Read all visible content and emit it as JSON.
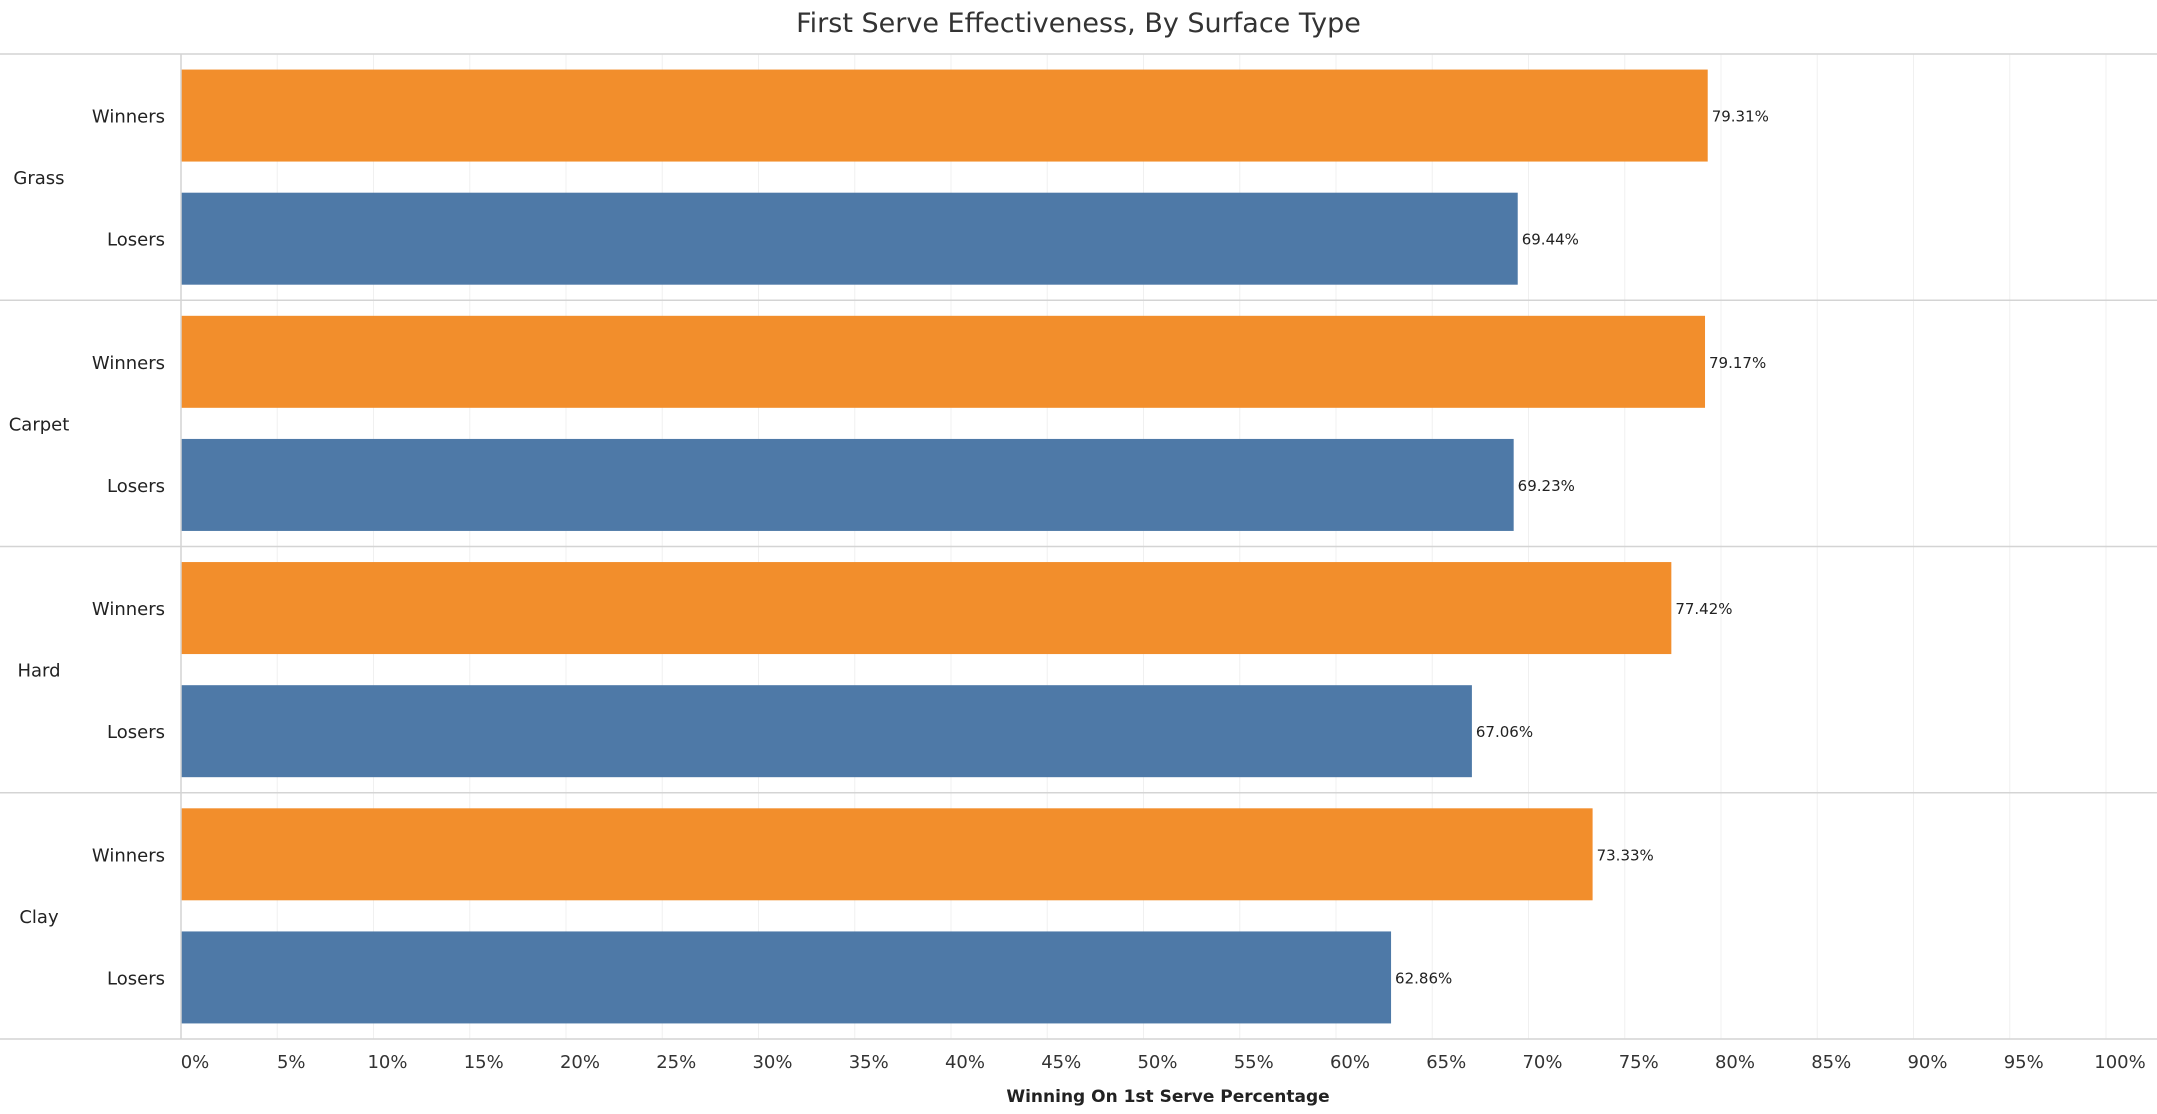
{
  "chart_data": {
    "type": "bar",
    "orientation": "horizontal",
    "title": "First Serve Effectiveness, By Surface Type",
    "xlabel": "Winning On 1st Serve Percentage",
    "ylabel": "",
    "xlim": [
      0,
      100
    ],
    "x_ticks": [
      {
        "value": 0,
        "label": "0%"
      },
      {
        "value": 5,
        "label": "5%"
      },
      {
        "value": 10,
        "label": "10%"
      },
      {
        "value": 15,
        "label": "15%"
      },
      {
        "value": 20,
        "label": "20%"
      },
      {
        "value": 25,
        "label": "25%"
      },
      {
        "value": 30,
        "label": "30%"
      },
      {
        "value": 35,
        "label": "35%"
      },
      {
        "value": 40,
        "label": "40%"
      },
      {
        "value": 45,
        "label": "45%"
      },
      {
        "value": 50,
        "label": "50%"
      },
      {
        "value": 55,
        "label": "55%"
      },
      {
        "value": 60,
        "label": "60%"
      },
      {
        "value": 65,
        "label": "65%"
      },
      {
        "value": 70,
        "label": "70%"
      },
      {
        "value": 75,
        "label": "75%"
      },
      {
        "value": 80,
        "label": "80%"
      },
      {
        "value": 85,
        "label": "85%"
      },
      {
        "value": 90,
        "label": "90%"
      },
      {
        "value": 95,
        "label": "95%"
      },
      {
        "value": 100,
        "label": "100%"
      }
    ],
    "grid": true,
    "colors": {
      "Winners": "#f28e2c",
      "Losers": "#4e79a7"
    },
    "groups": [
      {
        "surface": "Grass",
        "bars": [
          {
            "label": "Winners",
            "value": 79.31,
            "value_label": "79.31%"
          },
          {
            "label": "Losers",
            "value": 69.44,
            "value_label": "69.44%"
          }
        ]
      },
      {
        "surface": "Carpet",
        "bars": [
          {
            "label": "Winners",
            "value": 79.17,
            "value_label": "79.17%"
          },
          {
            "label": "Losers",
            "value": 69.23,
            "value_label": "69.23%"
          }
        ]
      },
      {
        "surface": "Hard",
        "bars": [
          {
            "label": "Winners",
            "value": 77.42,
            "value_label": "77.42%"
          },
          {
            "label": "Losers",
            "value": 67.06,
            "value_label": "67.06%"
          }
        ]
      },
      {
        "surface": "Clay",
        "bars": [
          {
            "label": "Winners",
            "value": 73.33,
            "value_label": "73.33%"
          },
          {
            "label": "Losers",
            "value": 62.86,
            "value_label": "62.86%"
          }
        ]
      }
    ]
  }
}
